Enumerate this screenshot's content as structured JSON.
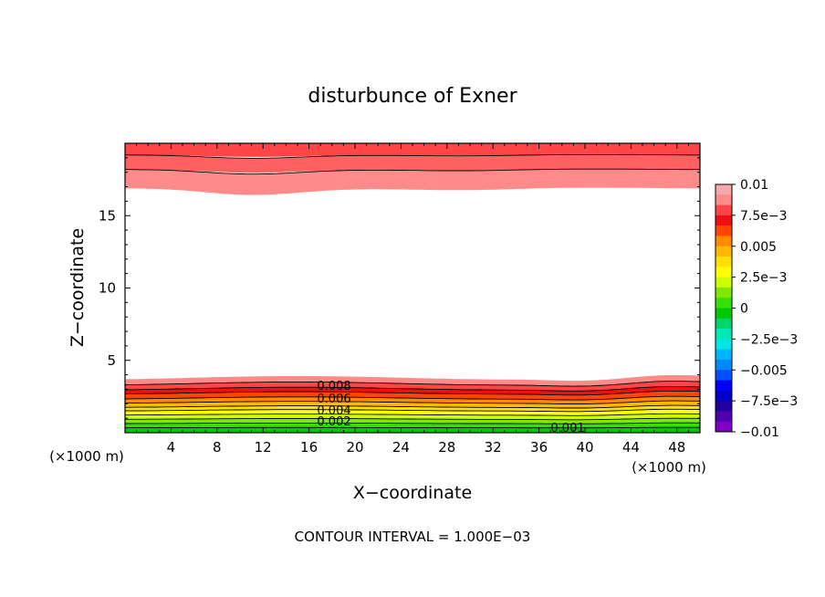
{
  "chart_data": {
    "type": "contour",
    "title": "disturbunce of Exner",
    "xlabel": "X−coordinate",
    "ylabel": "Z−coordinate",
    "x_unit_label": "(×1000 m)",
    "y_unit_label": "(×1000 m)",
    "footer": "CONTOUR INTERVAL = 1.000E−03",
    "xlim": [
      0,
      50
    ],
    "ylim": [
      0,
      20
    ],
    "x_ticks": [
      "4",
      "8",
      "12",
      "16",
      "20",
      "24",
      "28",
      "32",
      "36",
      "40",
      "44",
      "48"
    ],
    "y_ticks": [
      "5",
      "10",
      "15"
    ],
    "contour_interval": 0.001,
    "contour_labels": [
      "0.008",
      "0.006",
      "0.004",
      "0.002",
      "0.001"
    ],
    "colorbar": {
      "tick_labels": [
        "0.01",
        "7.5e−3",
        "0.005",
        "2.5e−3",
        "0",
        "−2.5e−3",
        "−0.005",
        "−7.5e−3",
        "−0.01"
      ],
      "colors": [
        "#f4aaaa",
        "#ff8a8a",
        "#ff4545",
        "#ee1010",
        "#ff4500",
        "#ff8a00",
        "#ffb800",
        "#ffe000",
        "#ffff00",
        "#ccff00",
        "#7fe800",
        "#33e000",
        "#00c800",
        "#00d56a",
        "#00e8b8",
        "#00e6e6",
        "#00b4ff",
        "#0088ff",
        "#0050ff",
        "#0000ff",
        "#0000c8",
        "#2000a0",
        "#5000b0",
        "#8000c8"
      ]
    }
  }
}
